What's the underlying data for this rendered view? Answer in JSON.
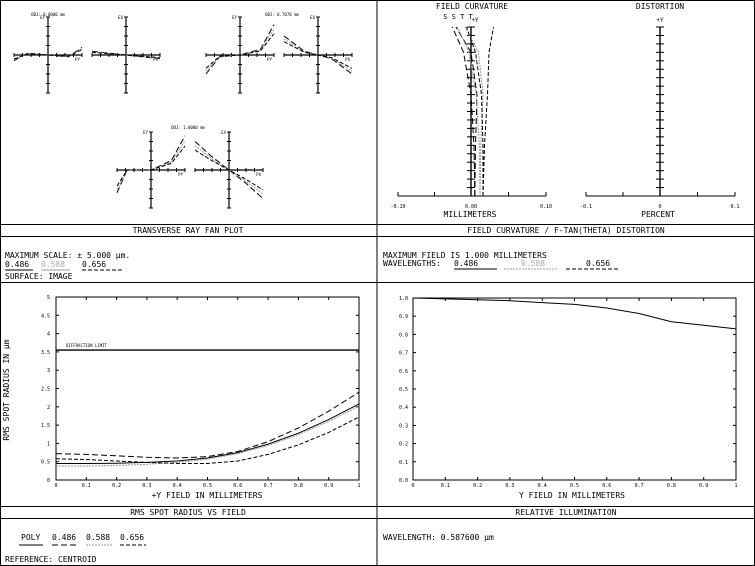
{
  "ray_fan": {
    "title": "TRANSVERSE RAY FAN PLOT",
    "scale_label": "MAXIMUM SCALE: ± 5.000 µm.",
    "wavelengths": [
      "0.486",
      "0.588",
      "0.656"
    ],
    "surface_label": "SURFACE: IMAGE",
    "fields": [
      {
        "label": "OBJ: 0.0000 mm"
      },
      {
        "label": "OBJ: 0.7070 mm"
      },
      {
        "label": "OBJ: 1.0000 mm"
      }
    ],
    "axis_labels": {
      "ey": "EY",
      "ex": "EX",
      "py": "PY",
      "px": "PX"
    }
  },
  "field_curvature": {
    "title": "FIELD CURVATURE / F-TAN(THETA) DISTORTION",
    "fc_header": "FIELD CURVATURE",
    "dist_header": "DISTORTION",
    "sag_markers": "S S T T",
    "y_axis_label": "+Y",
    "fc_xlabel": "MILLIMETERS",
    "dist_xlabel": "PERCENT",
    "fc_ticks": [
      "-0.10",
      "0.00",
      "0.10"
    ],
    "dist_ticks": [
      "-0.1",
      "0",
      "0.1"
    ],
    "max_field_label": "MAXIMUM FIELD IS 1.000 MILLIMETERS",
    "wavelengths_label": "WAVELENGTHS:",
    "wavelengths": [
      "0.486",
      "0.588",
      "0.656"
    ]
  },
  "spot": {
    "title": "RMS SPOT RADIUS VS FIELD",
    "ylabel": "RMS SPOT RADIUS IN µm",
    "xlabel": "+Y FIELD IN MILLIMETERS",
    "diffraction_label": "DIFFRACTION LIMIT",
    "legend": {
      "poly": "POLY",
      "w1": "0.486",
      "w2": "0.588",
      "w3": "0.656"
    },
    "reference_label": "REFERENCE: CENTROID"
  },
  "illum": {
    "title": "RELATIVE ILLUMINATION",
    "xlabel": "Y FIELD IN MILLIMETERS",
    "wavelength_label": "WAVELENGTH: 0.587600 µm"
  },
  "chart_data": [
    {
      "type": "line",
      "title": "TRANSVERSE RAY FAN PLOT",
      "max_scale_um": 5.0,
      "fields_mm": [
        0.0,
        0.707,
        1.0
      ],
      "series": [
        {
          "name": "0.486",
          "tangential": [
            [
              0,
              0
            ]
          ],
          "sagittal": [
            [
              0,
              0
            ]
          ]
        },
        {
          "name": "0.588",
          "tangential": [
            [
              0,
              0
            ]
          ],
          "sagittal": [
            [
              0,
              0
            ]
          ]
        },
        {
          "name": "0.656",
          "tangential": [
            [
              0,
              0
            ]
          ],
          "sagittal": [
            [
              0,
              0
            ]
          ]
        }
      ]
    },
    {
      "type": "line",
      "title": "FIELD CURVATURE",
      "xlabel": "MILLIMETERS",
      "ylabel": "+Y",
      "xlim": [
        -0.1,
        0.1
      ],
      "ylim": [
        0,
        1
      ],
      "series": [
        {
          "name": "0.486 S",
          "points": [
            [
              0.005,
              0
            ],
            [
              0.004,
              0.3
            ],
            [
              0.0,
              0.6
            ],
            [
              -0.01,
              0.85
            ],
            [
              -0.025,
              1.0
            ]
          ]
        },
        {
          "name": "0.486 T",
          "points": [
            [
              0.005,
              0
            ],
            [
              0.006,
              0.3
            ],
            [
              0.008,
              0.6
            ],
            [
              0.0,
              0.85
            ],
            [
              -0.02,
              1.0
            ]
          ]
        },
        {
          "name": "0.588 S",
          "points": [
            [
              0.012,
              0
            ],
            [
              0.011,
              0.3
            ],
            [
              0.007,
              0.6
            ],
            [
              -0.003,
              0.85
            ],
            [
              -0.018,
              1.0
            ]
          ]
        },
        {
          "name": "0.588 T",
          "points": [
            [
              0.012,
              0
            ],
            [
              0.013,
              0.3
            ],
            [
              0.016,
              0.6
            ],
            [
              0.01,
              0.85
            ],
            [
              -0.008,
              1.0
            ]
          ]
        },
        {
          "name": "0.656 S",
          "points": [
            [
              0.016,
              0
            ],
            [
              0.016,
              0.3
            ],
            [
              0.014,
              0.6
            ],
            [
              0.006,
              0.85
            ],
            [
              -0.006,
              1.0
            ]
          ]
        },
        {
          "name": "0.656 T",
          "points": [
            [
              0.016,
              0
            ],
            [
              0.018,
              0.3
            ],
            [
              0.022,
              0.6
            ],
            [
              0.024,
              0.85
            ],
            [
              0.03,
              1.0
            ]
          ]
        }
      ]
    },
    {
      "type": "line",
      "title": "DISTORTION",
      "xlabel": "PERCENT",
      "ylabel": "+Y",
      "xlim": [
        -0.1,
        0.1
      ],
      "ylim": [
        0,
        1
      ],
      "series": [
        {
          "name": "0.588",
          "points": [
            [
              0,
              0
            ],
            [
              0,
              0.5
            ],
            [
              0,
              1
            ]
          ]
        }
      ]
    },
    {
      "type": "line",
      "title": "RMS SPOT RADIUS VS FIELD",
      "xlabel": "+Y FIELD IN MILLIMETERS",
      "ylabel": "RMS SPOT RADIUS IN µm",
      "xlim": [
        0,
        1
      ],
      "ylim": [
        0,
        5
      ],
      "x_ticks": [
        0,
        0.1,
        0.2,
        0.3,
        0.4,
        0.5,
        0.6,
        0.7,
        0.8,
        0.9,
        1
      ],
      "y_ticks": [
        0,
        0.5,
        1,
        1.5,
        2,
        2.5,
        3,
        3.5,
        4,
        4.5,
        5
      ],
      "diffraction_limit": 3.55,
      "series": [
        {
          "name": "POLY",
          "x": [
            0,
            0.1,
            0.2,
            0.3,
            0.4,
            0.5,
            0.6,
            0.7,
            0.8,
            0.9,
            1.0
          ],
          "y": [
            0.45,
            0.45,
            0.46,
            0.48,
            0.52,
            0.6,
            0.75,
            0.98,
            1.28,
            1.65,
            2.08
          ]
        },
        {
          "name": "0.486",
          "x": [
            0,
            0.1,
            0.2,
            0.3,
            0.4,
            0.5,
            0.6,
            0.7,
            0.8,
            0.9,
            1.0
          ],
          "y": [
            0.72,
            0.7,
            0.66,
            0.62,
            0.6,
            0.64,
            0.78,
            1.05,
            1.42,
            1.88,
            2.4
          ]
        },
        {
          "name": "0.588",
          "x": [
            0,
            0.1,
            0.2,
            0.3,
            0.4,
            0.5,
            0.6,
            0.7,
            0.8,
            0.9,
            1.0
          ],
          "y": [
            0.38,
            0.38,
            0.4,
            0.43,
            0.48,
            0.57,
            0.72,
            0.94,
            1.24,
            1.6,
            2.02
          ]
        },
        {
          "name": "0.656",
          "x": [
            0,
            0.1,
            0.2,
            0.3,
            0.4,
            0.5,
            0.6,
            0.7,
            0.8,
            0.9,
            1.0
          ],
          "y": [
            0.58,
            0.56,
            0.52,
            0.48,
            0.45,
            0.45,
            0.52,
            0.7,
            0.96,
            1.3,
            1.72
          ]
        }
      ]
    },
    {
      "type": "line",
      "title": "RELATIVE ILLUMINATION",
      "xlabel": "Y FIELD IN MILLIMETERS",
      "xlim": [
        0,
        1
      ],
      "ylim": [
        0,
        1
      ],
      "x_ticks": [
        0,
        0.1,
        0.2,
        0.3,
        0.4,
        0.5,
        0.6,
        0.7,
        0.8,
        0.9,
        1
      ],
      "y_ticks": [
        0,
        0.1,
        0.2,
        0.3,
        0.4,
        0.5,
        0.6,
        0.7,
        0.8,
        0.9,
        1
      ],
      "series": [
        {
          "name": "0.5876",
          "x": [
            0,
            0.1,
            0.2,
            0.3,
            0.4,
            0.5,
            0.6,
            0.7,
            0.8,
            0.9,
            1.0
          ],
          "y": [
            1.0,
            0.995,
            0.99,
            0.985,
            0.975,
            0.965,
            0.945,
            0.915,
            0.87,
            0.85,
            0.83
          ]
        }
      ]
    }
  ]
}
